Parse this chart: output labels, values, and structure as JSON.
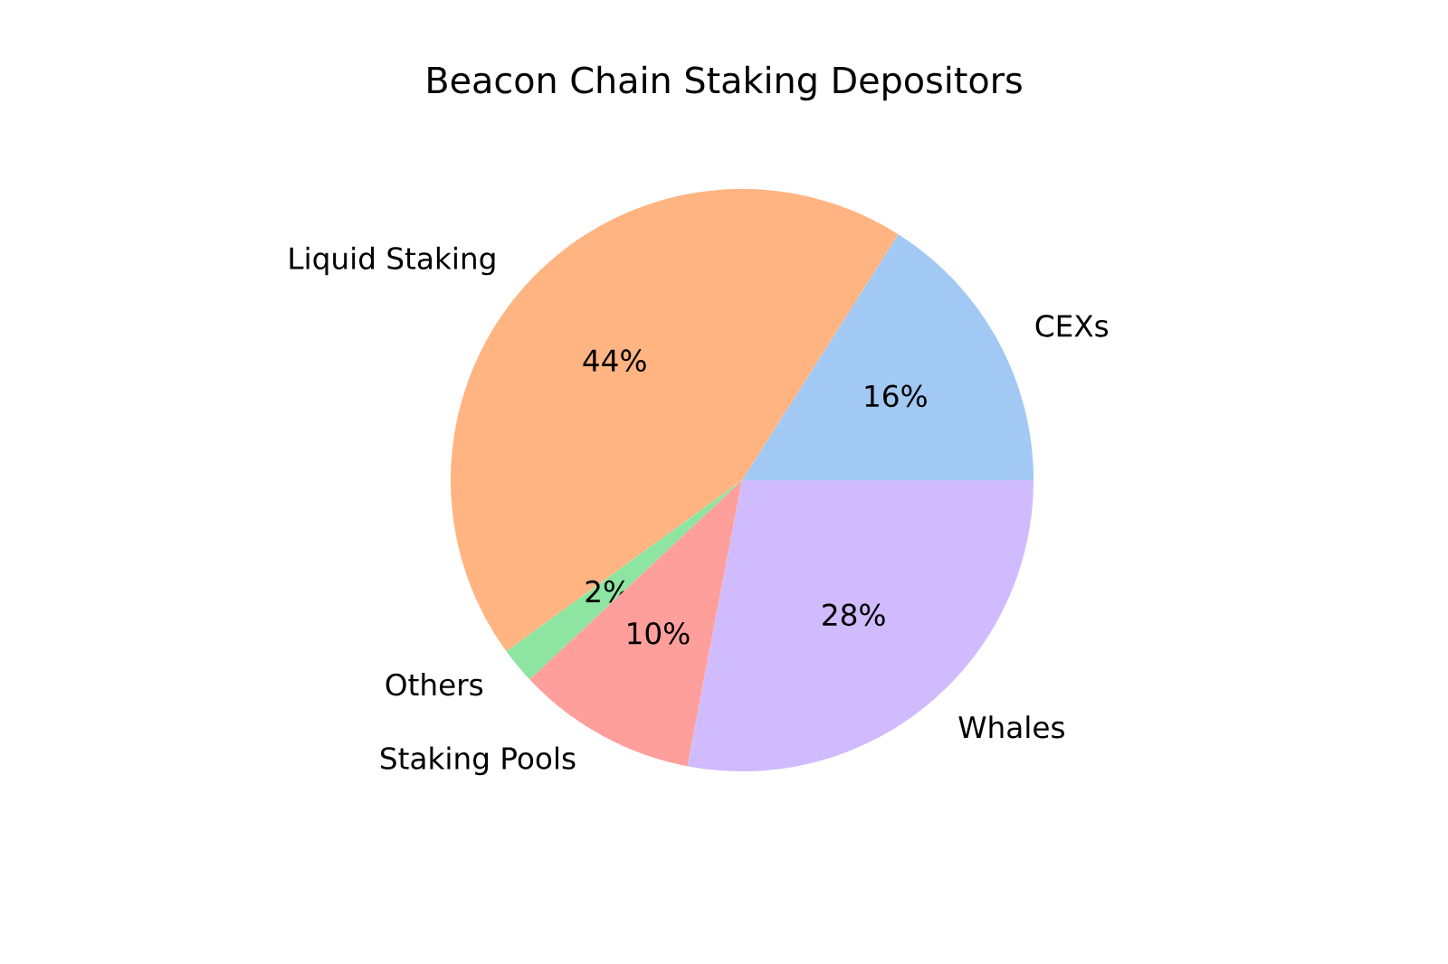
{
  "chart_data": {
    "type": "pie",
    "title": "Beacon Chain Staking Depositors",
    "categories": [
      "CEXs",
      "Liquid Staking",
      "Others",
      "Staking Pools",
      "Whales"
    ],
    "values": [
      16,
      44,
      2,
      10,
      28
    ],
    "colors": [
      "#a1c9f4",
      "#ffb482",
      "#8de5a1",
      "#ff9f9b",
      "#d0bbff"
    ],
    "value_labels": [
      "16%",
      "44%",
      "2%",
      "10%",
      "28%"
    ]
  }
}
